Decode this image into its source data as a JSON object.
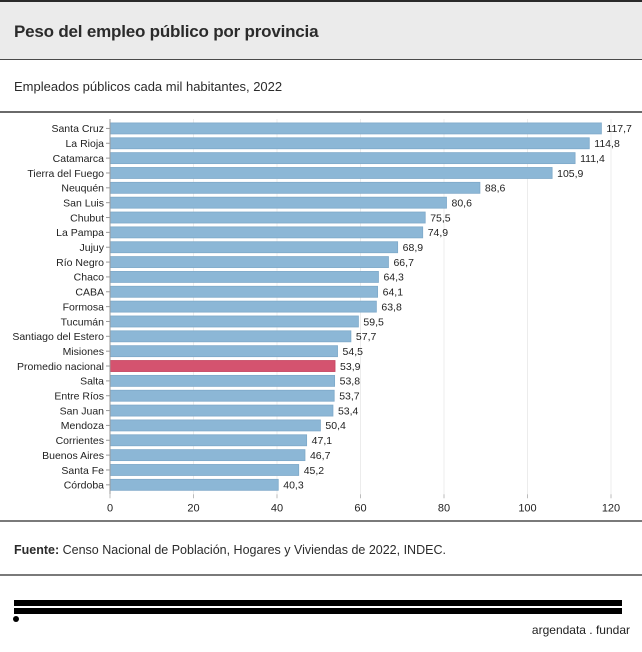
{
  "header": {
    "title": "Peso del empleo público por provincia",
    "subtitle": "Empleados públicos cada mil habitantes, 2022"
  },
  "footer": {
    "source_label": "Fuente:",
    "source_text": " Censo Nacional de Población, Hogares y Viviendas de 2022, INDEC.",
    "brand": "argendata . fundar"
  },
  "colors": {
    "bar": "#8cb7d6",
    "bar_stroke": "#7ea9c9",
    "highlight": "#d4536f",
    "highlight_stroke": "#c4445f"
  },
  "chart_data": {
    "type": "bar",
    "orientation": "horizontal",
    "title": "Peso del empleo público por provincia",
    "subtitle": "Empleados públicos cada mil habitantes, 2022",
    "xlabel": "",
    "ylabel": "",
    "xlim": [
      0,
      120
    ],
    "xticks": [
      0,
      20,
      40,
      60,
      80,
      100,
      120
    ],
    "grid": true,
    "highlight_category": "Promedio nacional",
    "categories": [
      "Santa Cruz",
      "La Rioja",
      "Catamarca",
      "Tierra del Fuego",
      "Neuquén",
      "San Luis",
      "Chubut",
      "La Pampa",
      "Jujuy",
      "Río Negro",
      "Chaco",
      "CABA",
      "Formosa",
      "Tucumán",
      "Santiago del Estero",
      "Misiones",
      "Promedio nacional",
      "Salta",
      "Entre Ríos",
      "San Juan",
      "Mendoza",
      "Corrientes",
      "Buenos Aires",
      "Santa Fe",
      "Córdoba"
    ],
    "values": [
      117.7,
      114.8,
      111.4,
      105.9,
      88.6,
      80.6,
      75.5,
      74.9,
      68.9,
      66.7,
      64.3,
      64.1,
      63.8,
      59.5,
      57.7,
      54.5,
      53.9,
      53.8,
      53.7,
      53.4,
      50.4,
      47.1,
      46.7,
      45.2,
      40.3
    ],
    "value_labels": [
      "117,7",
      "114,8",
      "111,4",
      "105,9",
      "88,6",
      "80,6",
      "75,5",
      "74,9",
      "68,9",
      "66,7",
      "64,3",
      "64,1",
      "63,8",
      "59,5",
      "57,7",
      "54,5",
      "53,9",
      "53,8",
      "53,7",
      "53,4",
      "50,4",
      "47,1",
      "46,7",
      "45,2",
      "40,3"
    ]
  }
}
